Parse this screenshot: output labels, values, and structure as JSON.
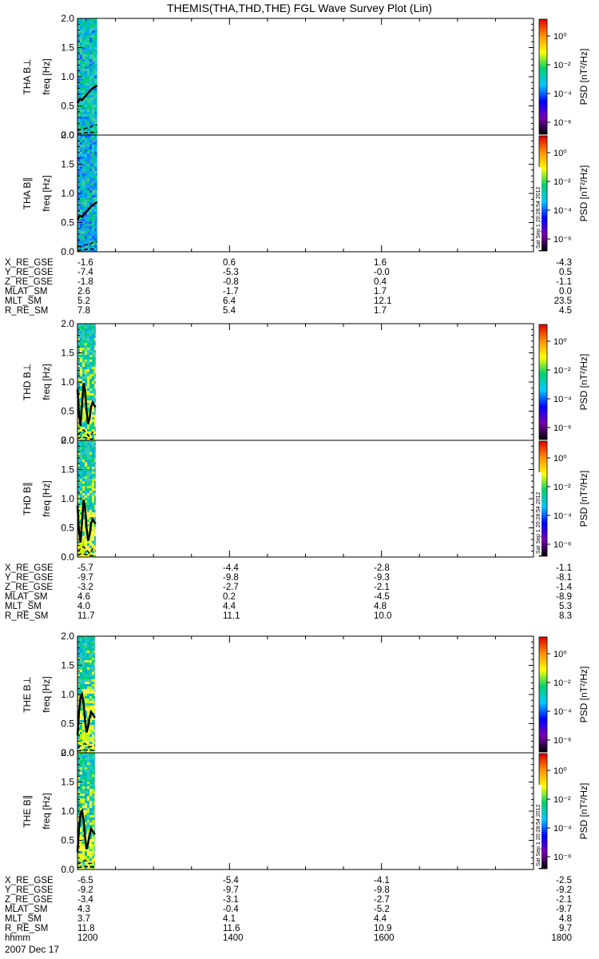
{
  "chart_data": {
    "type": "heatmap",
    "title": "THEMIS(THA,THD,THE) FGL Wave Survey Plot (Lin)",
    "colorbar": {
      "label": "PSD [nT²/Hz]",
      "ticks": [
        "10⁰",
        "10⁻²",
        "10⁻⁴",
        "10⁻⁶"
      ],
      "colors": [
        "#000000",
        "#7a00b0",
        "#0000ff",
        "#00c8ff",
        "#00d070",
        "#ffff00",
        "#ff9000",
        "#e00000"
      ]
    },
    "stamp": "Sat Sep 1 20:28:54 2012",
    "freq_axis": {
      "label": "freq [Hz]",
      "ylim": [
        0.0,
        2.0
      ],
      "ticks": [
        "0.0",
        "0.5",
        "1.0",
        "1.5",
        "2.0"
      ]
    },
    "time_axis": {
      "xlim": [
        1200,
        1800
      ]
    },
    "date": "2007 Dec 17",
    "probes": [
      {
        "name": "THA",
        "data_end": 1226,
        "panels": [
          {
            "label": "THA B⊥",
            "has_stamp": false,
            "solid": [
              [
                1200,
                0.55
              ],
              [
                1203,
                0.62
              ],
              [
                1206,
                0.6
              ],
              [
                1210,
                0.66
              ],
              [
                1214,
                0.72
              ],
              [
                1218,
                0.78
              ],
              [
                1222,
                0.82
              ],
              [
                1226,
                0.85
              ]
            ],
            "dashed": [
              [
                1200,
                0.08
              ],
              [
                1206,
                0.1
              ],
              [
                1212,
                0.12
              ],
              [
                1218,
                0.14
              ],
              [
                1222,
                0.18
              ],
              [
                1226,
                0.17
              ]
            ],
            "dashed2": [
              [
                1200,
                0.02
              ],
              [
                1210,
                0.04
              ],
              [
                1226,
                0.05
              ]
            ]
          },
          {
            "label": "THA B∥",
            "has_stamp": true,
            "solid": [
              [
                1200,
                0.55
              ],
              [
                1203,
                0.62
              ],
              [
                1206,
                0.6
              ],
              [
                1210,
                0.66
              ],
              [
                1214,
                0.72
              ],
              [
                1218,
                0.78
              ],
              [
                1222,
                0.82
              ],
              [
                1226,
                0.85
              ]
            ],
            "dashed": [
              [
                1200,
                0.08
              ],
              [
                1206,
                0.1
              ],
              [
                1212,
                0.12
              ],
              [
                1218,
                0.14
              ],
              [
                1222,
                0.18
              ],
              [
                1226,
                0.17
              ]
            ],
            "dashed2": [
              [
                1200,
                0.02
              ],
              [
                1210,
                0.04
              ],
              [
                1226,
                0.05
              ]
            ]
          }
        ],
        "ephem": [
          {
            "label": "X_RE_GSE",
            "values": [
              "-1.6",
              "0.6",
              "1.6",
              "-4.3"
            ]
          },
          {
            "label": "Y_RE_GSE",
            "values": [
              "-7.4",
              "-5.3",
              "-0.0",
              "0.5"
            ]
          },
          {
            "label": "Z_RE_GSE",
            "values": [
              "-1.8",
              "-0.8",
              "0.4",
              "-1.1"
            ]
          },
          {
            "label": "MLAT_SM",
            "values": [
              "2.6",
              "-1.7",
              "1.7",
              "0.0"
            ]
          },
          {
            "label": "MLT_SM",
            "values": [
              "5.2",
              "6.4",
              "12.1",
              "23.5"
            ]
          },
          {
            "label": "R_RE_SM",
            "values": [
              "7.8",
              "5.4",
              "1.7",
              "4.5"
            ]
          }
        ]
      },
      {
        "name": "THD",
        "data_end": 1224,
        "panels": [
          {
            "label": "THD B⊥",
            "has_stamp": false,
            "solid": [
              [
                1200,
                0.88
              ],
              [
                1202,
                0.45
              ],
              [
                1204,
                0.25
              ],
              [
                1206,
                0.6
              ],
              [
                1208,
                0.98
              ],
              [
                1210,
                0.85
              ],
              [
                1212,
                0.5
              ],
              [
                1214,
                0.28
              ],
              [
                1216,
                0.38
              ],
              [
                1218,
                0.58
              ],
              [
                1220,
                0.65
              ],
              [
                1222,
                0.6
              ],
              [
                1224,
                0.57
              ]
            ],
            "dashed": [
              [
                1200,
                0.1
              ],
              [
                1204,
                0.14
              ],
              [
                1208,
                0.18
              ],
              [
                1212,
                0.12
              ],
              [
                1216,
                0.06
              ],
              [
                1220,
                0.14
              ],
              [
                1224,
                0.1
              ]
            ],
            "dashed2": [
              [
                1200,
                0.03
              ],
              [
                1206,
                0.06
              ],
              [
                1212,
                0.04
              ],
              [
                1218,
                0.02
              ],
              [
                1224,
                0.03
              ]
            ]
          },
          {
            "label": "THD B∥",
            "has_stamp": true,
            "solid": [
              [
                1200,
                0.88
              ],
              [
                1202,
                0.45
              ],
              [
                1204,
                0.25
              ],
              [
                1206,
                0.6
              ],
              [
                1208,
                0.98
              ],
              [
                1210,
                0.85
              ],
              [
                1212,
                0.5
              ],
              [
                1214,
                0.28
              ],
              [
                1216,
                0.38
              ],
              [
                1218,
                0.58
              ],
              [
                1220,
                0.65
              ],
              [
                1222,
                0.6
              ],
              [
                1224,
                0.57
              ]
            ],
            "dashed": [
              [
                1200,
                0.1
              ],
              [
                1204,
                0.14
              ],
              [
                1208,
                0.18
              ],
              [
                1212,
                0.12
              ],
              [
                1216,
                0.06
              ],
              [
                1220,
                0.14
              ],
              [
                1224,
                0.1
              ]
            ],
            "dashed2": [
              [
                1200,
                0.03
              ],
              [
                1206,
                0.06
              ],
              [
                1212,
                0.04
              ],
              [
                1218,
                0.02
              ],
              [
                1224,
                0.03
              ]
            ]
          }
        ],
        "ephem": [
          {
            "label": "X_RE_GSE",
            "values": [
              "-5.7",
              "-4.4",
              "-2.8",
              "-1.1"
            ]
          },
          {
            "label": "Y_RE_GSE",
            "values": [
              "-9.7",
              "-9.8",
              "-9.3",
              "-8.1"
            ]
          },
          {
            "label": "Z_RE_GSE",
            "values": [
              "-3.2",
              "-2.7",
              "-2.1",
              "-1.4"
            ]
          },
          {
            "label": "MLAT_SM",
            "values": [
              "4.6",
              "0.2",
              "-4.5",
              "-8.9"
            ]
          },
          {
            "label": "MLT_SM",
            "values": [
              "4.0",
              "4.4",
              "4.8",
              "5.3"
            ]
          },
          {
            "label": "R_RE_SM",
            "values": [
              "11.7",
              "11.1",
              "10.0",
              "8.3"
            ]
          }
        ]
      },
      {
        "name": "THE",
        "data_end": 1223,
        "panels": [
          {
            "label": "THE B⊥",
            "has_stamp": false,
            "solid": [
              [
                1200,
                0.3
              ],
              [
                1202,
                0.7
              ],
              [
                1204,
                0.95
              ],
              [
                1206,
                1.0
              ],
              [
                1208,
                0.85
              ],
              [
                1210,
                0.55
              ],
              [
                1212,
                0.35
              ],
              [
                1214,
                0.45
              ],
              [
                1216,
                0.6
              ],
              [
                1218,
                0.7
              ],
              [
                1220,
                0.66
              ],
              [
                1223,
                0.6
              ]
            ],
            "dashed": [
              [
                1200,
                0.1
              ],
              [
                1205,
                0.12
              ],
              [
                1210,
                0.16
              ],
              [
                1215,
                0.1
              ],
              [
                1223,
                0.12
              ]
            ],
            "dashed2": [
              [
                1200,
                0.03
              ],
              [
                1210,
                0.05
              ],
              [
                1223,
                0.04
              ]
            ]
          },
          {
            "label": "THE B∥",
            "has_stamp": true,
            "solid": [
              [
                1200,
                0.3
              ],
              [
                1202,
                0.7
              ],
              [
                1204,
                0.95
              ],
              [
                1206,
                1.0
              ],
              [
                1208,
                0.85
              ],
              [
                1210,
                0.55
              ],
              [
                1212,
                0.35
              ],
              [
                1214,
                0.45
              ],
              [
                1216,
                0.6
              ],
              [
                1218,
                0.7
              ],
              [
                1220,
                0.66
              ],
              [
                1223,
                0.6
              ]
            ],
            "dashed": [
              [
                1200,
                0.1
              ],
              [
                1205,
                0.12
              ],
              [
                1210,
                0.16
              ],
              [
                1215,
                0.1
              ],
              [
                1223,
                0.12
              ]
            ],
            "dashed2": [
              [
                1200,
                0.03
              ],
              [
                1210,
                0.05
              ],
              [
                1223,
                0.04
              ]
            ]
          }
        ],
        "ephem": [
          {
            "label": "X_RE_GSE",
            "values": [
              "-6.5",
              "-5.4",
              "-4.1",
              "-2.5"
            ]
          },
          {
            "label": "Y_RE_GSE",
            "values": [
              "-9.2",
              "-9.7",
              "-9.8",
              "-9.2"
            ]
          },
          {
            "label": "Z_RE_GSE",
            "values": [
              "-3.4",
              "-3.1",
              "-2.7",
              "-2.1"
            ]
          },
          {
            "label": "MLAT_SM",
            "values": [
              "4.3",
              "-0.4",
              "-5.2",
              "-9.7"
            ]
          },
          {
            "label": "MLT_SM",
            "values": [
              "3.7",
              "4.1",
              "4.4",
              "4.8"
            ]
          },
          {
            "label": "R_RE_SM",
            "values": [
              "11.8",
              "11.6",
              "10.9",
              "9.7"
            ]
          },
          {
            "label": "hhmm",
            "values": [
              "1200",
              "1400",
              "1600",
              "1800"
            ]
          }
        ]
      }
    ]
  }
}
